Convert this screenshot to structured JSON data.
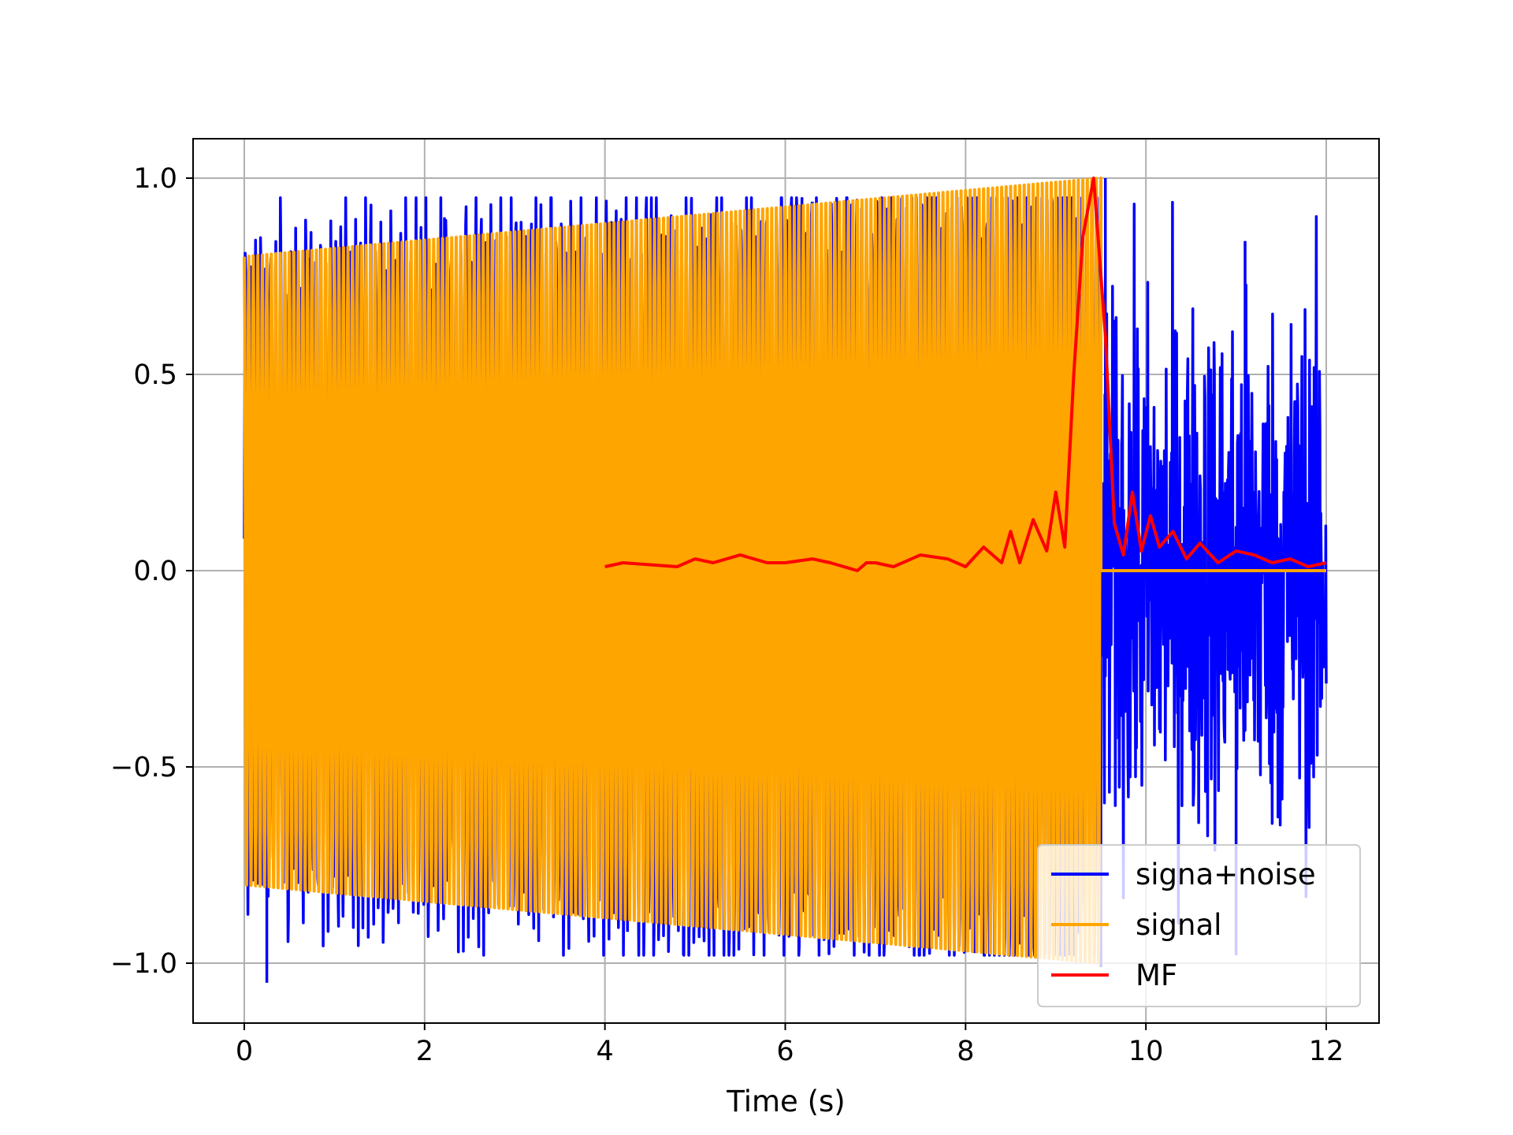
{
  "chart_data": {
    "type": "line",
    "title": "",
    "xlabel": "Time (s)",
    "ylabel": "",
    "xlim": [
      -0.6,
      12.6
    ],
    "ylim": [
      -1.16,
      1.1
    ],
    "grid": true,
    "legend_position": "lower-right",
    "x_ticks": [
      0,
      2,
      4,
      6,
      8,
      10,
      12
    ],
    "x_tick_labels": [
      "0",
      "2",
      "4",
      "6",
      "8",
      "10",
      "12"
    ],
    "y_ticks": [
      -1.0,
      -0.5,
      0.0,
      0.5,
      1.0
    ],
    "y_tick_labels": [
      "−1.0",
      "−0.5",
      "0.0",
      "0.5",
      "1.0"
    ],
    "series": [
      {
        "name": "signa+noise",
        "color": "#0000ff",
        "description_x_range": [
          0,
          12
        ],
        "peaks": [
          {
            "x": 0.25,
            "y": -1.05
          },
          {
            "x": 2.22,
            "y": 0.9
          },
          {
            "x": 4.25,
            "y": -0.92
          },
          {
            "x": 4.87,
            "y": -0.98
          },
          {
            "x": 6.3,
            "y": 0.94
          },
          {
            "x": 9.55,
            "y": 1.0
          },
          {
            "x": 9.5,
            "y": -1.01
          },
          {
            "x": 11.1,
            "y": 0.84
          },
          {
            "x": 11.0,
            "y": -0.98
          }
        ],
        "noise_region_x": [
          9.5,
          12.0
        ],
        "noise_amplitude_approx": 0.6
      },
      {
        "name": "signal",
        "color": "#ffa500",
        "chirp_x_range": [
          0,
          9.5
        ],
        "amplitude_start": 0.8,
        "amplitude_end": 1.0,
        "zero_after_x": 9.5
      },
      {
        "name": "MF",
        "color": "#ff0000",
        "x": [
          4.0,
          4.2,
          4.5,
          4.8,
          5.0,
          5.2,
          5.5,
          5.8,
          6.0,
          6.3,
          6.5,
          6.8,
          6.9,
          7.0,
          7.2,
          7.5,
          7.8,
          8.0,
          8.2,
          8.4,
          8.5,
          8.6,
          8.75,
          8.9,
          9.0,
          9.1,
          9.2,
          9.3,
          9.42,
          9.55,
          9.65,
          9.75,
          9.85,
          9.95,
          10.05,
          10.15,
          10.3,
          10.45,
          10.6,
          10.8,
          11.0,
          11.2,
          11.4,
          11.6,
          11.8,
          12.0
        ],
        "y": [
          0.01,
          0.02,
          0.015,
          0.01,
          0.03,
          0.02,
          0.04,
          0.02,
          0.02,
          0.03,
          0.02,
          0.0,
          0.02,
          0.02,
          0.01,
          0.04,
          0.03,
          0.01,
          0.06,
          0.02,
          0.1,
          0.02,
          0.13,
          0.05,
          0.2,
          0.06,
          0.5,
          0.85,
          1.0,
          0.6,
          0.12,
          0.04,
          0.2,
          0.05,
          0.14,
          0.06,
          0.1,
          0.03,
          0.07,
          0.02,
          0.05,
          0.04,
          0.02,
          0.03,
          0.01,
          0.02
        ]
      }
    ],
    "legend": {
      "entries": [
        {
          "label": "signa+noise",
          "color": "#0000ff"
        },
        {
          "label": "signal",
          "color": "#ffa500"
        },
        {
          "label": "MF",
          "color": "#ff0000"
        }
      ]
    }
  }
}
